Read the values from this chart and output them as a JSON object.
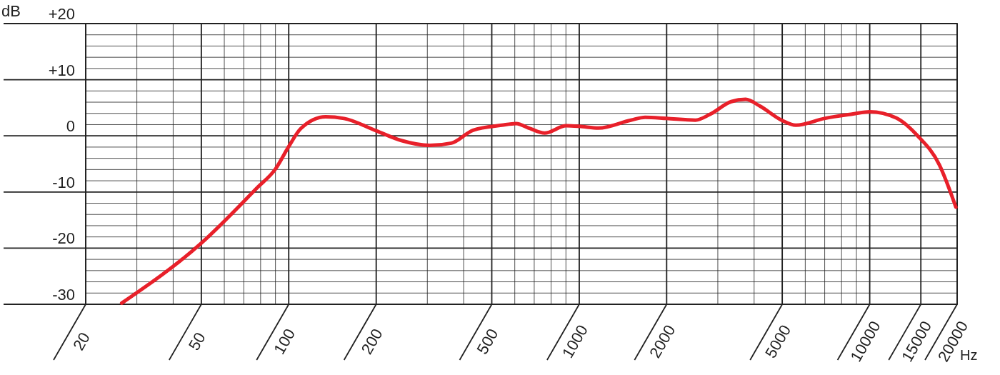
{
  "chart_data": {
    "type": "line",
    "xlabel": "Hz",
    "ylabel": "dB",
    "log": "x",
    "grid": true,
    "line_style": "solid",
    "marker": "none",
    "xlim": [
      20,
      20000
    ],
    "xticks": [
      20,
      50,
      100,
      200,
      500,
      1000,
      2000,
      5000,
      10000,
      15000,
      20000
    ],
    "ylim": [
      -30,
      20
    ],
    "yticks": [
      {
        "value": -30,
        "label": "-30"
      },
      {
        "value": -20,
        "label": "-20"
      },
      {
        "value": -10,
        "label": "-10"
      },
      {
        "value": 0,
        "label": "0"
      },
      {
        "value": 10,
        "label": "+10"
      },
      {
        "value": 20,
        "label": "+20"
      }
    ],
    "series": [
      {
        "color": "#e8202a",
        "x": [
          26.6,
          50,
          78,
          90,
          100,
          110,
          134,
          155,
          200,
          243,
          306,
          363,
          431,
          541,
          606,
          677,
          760,
          902,
          1000,
          1165,
          1506,
          1686,
          2000,
          2511,
          2812,
          3337,
          3740,
          4190,
          4970,
          5570,
          6980,
          8770,
          10000,
          12330,
          14630,
          17350,
          19800
        ],
        "values": [
          -29.8,
          -19.1,
          -9.2,
          -5.9,
          -1.9,
          1.3,
          3.4,
          3.1,
          0.9,
          -0.8,
          -1.7,
          -1.3,
          1.0,
          1.9,
          2.2,
          1.3,
          0.5,
          1.8,
          1.7,
          1.4,
          2.8,
          3.3,
          3.1,
          2.8,
          3.8,
          6.1,
          6.5,
          5.3,
          2.8,
          1.9,
          3.1,
          3.9,
          4.3,
          3.2,
          0,
          -5.1,
          -12.7
        ]
      }
    ]
  }
}
